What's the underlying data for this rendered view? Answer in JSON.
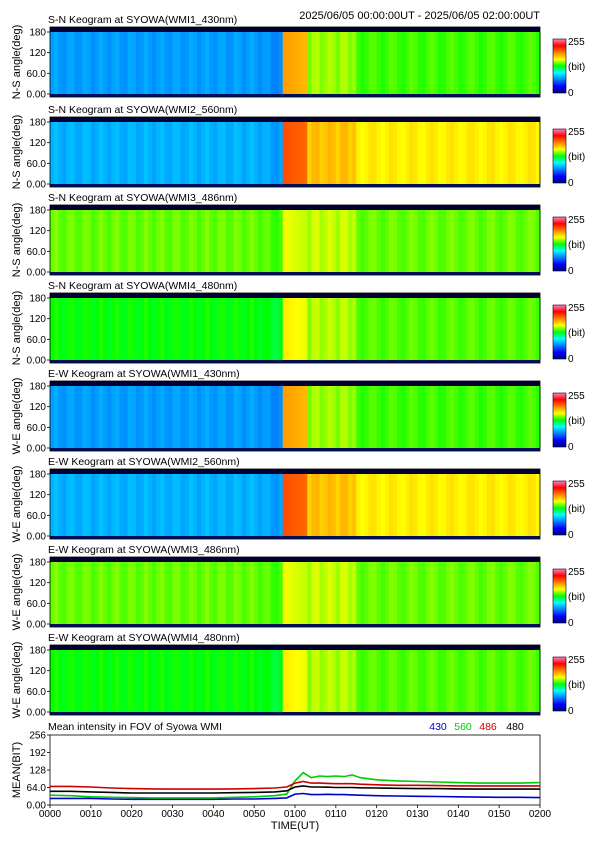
{
  "header": {
    "time_range": "2025/06/05 00:00:00UT - 2025/06/05 02:00:00UT"
  },
  "colorbar": {
    "max_label": "255",
    "unit_label": "(bit)",
    "min_label": "0"
  },
  "chart_data": [
    {
      "type": "heatmap",
      "title": "S-N Keogram at SYOWA(WMI1_430nm)",
      "ylabel": "N-S angle(deg)",
      "yticks": [
        "180",
        "120",
        "60.0",
        "0.00"
      ],
      "ylim": [
        0,
        180
      ],
      "brightness": {
        "pre_0100": 0.28,
        "post_0100": 0.55,
        "peak_0100": 0.72
      }
    },
    {
      "type": "heatmap",
      "title": "S-N Keogram at SYOWA(WMI2_560nm)",
      "ylabel": "N-S angle(deg)",
      "yticks": [
        "180",
        "120",
        "60.0",
        "0.00"
      ],
      "ylim": [
        0,
        180
      ],
      "brightness": {
        "pre_0100": 0.3,
        "post_0100": 0.66,
        "peak_0100": 0.8
      }
    },
    {
      "type": "heatmap",
      "title": "S-N Keogram at SYOWA(WMI3_486nm)",
      "ylabel": "N-S angle(deg)",
      "yticks": [
        "180",
        "120",
        "60.0",
        "0.00"
      ],
      "ylim": [
        0,
        180
      ],
      "brightness": {
        "pre_0100": 0.55,
        "post_0100": 0.57,
        "peak_0100": 0.62
      }
    },
    {
      "type": "heatmap",
      "title": "S-N Keogram at SYOWA(WMI4_480nm)",
      "ylabel": "N-S angle(deg)",
      "yticks": [
        "180",
        "120",
        "60.0",
        "0.00"
      ],
      "ylim": [
        0,
        180
      ],
      "brightness": {
        "pre_0100": 0.5,
        "post_0100": 0.56,
        "peak_0100": 0.64
      }
    },
    {
      "type": "heatmap",
      "title": "E-W Keogram at SYOWA(WMI1_430nm)",
      "ylabel": "W-E angle(deg)",
      "yticks": [
        "180",
        "120",
        "60.0",
        "0.00"
      ],
      "ylim": [
        0,
        180
      ],
      "brightness": {
        "pre_0100": 0.28,
        "post_0100": 0.55,
        "peak_0100": 0.72
      }
    },
    {
      "type": "heatmap",
      "title": "E-W Keogram at SYOWA(WMI2_560nm)",
      "ylabel": "W-E angle(deg)",
      "yticks": [
        "180",
        "120",
        "60.0",
        "0.00"
      ],
      "ylim": [
        0,
        180
      ],
      "brightness": {
        "pre_0100": 0.3,
        "post_0100": 0.66,
        "peak_0100": 0.8
      }
    },
    {
      "type": "heatmap",
      "title": "E-W Keogram at SYOWA(WMI3_486nm)",
      "ylabel": "W-E angle(deg)",
      "yticks": [
        "180",
        "120",
        "60.0",
        "0.00"
      ],
      "ylim": [
        0,
        180
      ],
      "brightness": {
        "pre_0100": 0.55,
        "post_0100": 0.57,
        "peak_0100": 0.62
      }
    },
    {
      "type": "heatmap",
      "title": "E-W Keogram at SYOWA(WMI4_480nm)",
      "ylabel": "W-E angle(deg)",
      "yticks": [
        "180",
        "120",
        "60.0",
        "0.00"
      ],
      "ylim": [
        0,
        180
      ],
      "brightness": {
        "pre_0100": 0.5,
        "post_0100": 0.56,
        "peak_0100": 0.64
      }
    },
    {
      "type": "line",
      "title": "Mean intensity in FOV of Syowa WMI",
      "ylabel": "MEAN(BIT)",
      "xlabel": "TIME(UT)",
      "ylim": [
        0,
        256
      ],
      "yticks": [
        "256",
        "192",
        "128",
        "64.0",
        "0.00"
      ],
      "xticks": [
        "0000",
        "0010",
        "0020",
        "0030",
        "0040",
        "0050",
        "0100",
        "0110",
        "0120",
        "0130",
        "0140",
        "0150",
        "0200"
      ],
      "x": [
        0,
        5,
        10,
        15,
        20,
        25,
        30,
        35,
        40,
        45,
        50,
        55,
        58,
        60,
        62,
        64,
        66,
        68,
        70,
        72,
        74,
        76,
        80,
        85,
        90,
        95,
        100,
        105,
        110,
        115,
        120
      ],
      "series": [
        {
          "name": "430",
          "color": "#0000cc",
          "values": [
            24,
            24,
            24,
            22,
            21,
            21,
            21,
            21,
            21,
            22,
            22,
            24,
            26,
            40,
            42,
            38,
            38,
            39,
            38,
            38,
            37,
            36,
            34,
            33,
            32,
            31,
            30,
            29,
            28,
            28,
            27
          ]
        },
        {
          "name": "560",
          "color": "#00cc00",
          "values": [
            36,
            34,
            30,
            28,
            27,
            26,
            26,
            26,
            26,
            28,
            30,
            34,
            40,
            88,
            118,
            100,
            106,
            104,
            106,
            104,
            110,
            100,
            92,
            88,
            86,
            84,
            82,
            80,
            80,
            80,
            82
          ]
        },
        {
          "name": "486",
          "color": "#cc0000",
          "values": [
            68,
            68,
            66,
            62,
            60,
            59,
            58,
            58,
            58,
            59,
            60,
            62,
            66,
            80,
            86,
            80,
            80,
            79,
            78,
            78,
            78,
            76,
            74,
            72,
            72,
            71,
            70,
            70,
            70,
            70,
            70
          ]
        },
        {
          "name": "480",
          "color": "#000000",
          "values": [
            50,
            50,
            48,
            46,
            44,
            44,
            44,
            44,
            44,
            45,
            46,
            48,
            52,
            66,
            70,
            66,
            66,
            65,
            64,
            64,
            64,
            63,
            62,
            61,
            60,
            60,
            59,
            58,
            58,
            58,
            58
          ]
        }
      ]
    }
  ]
}
